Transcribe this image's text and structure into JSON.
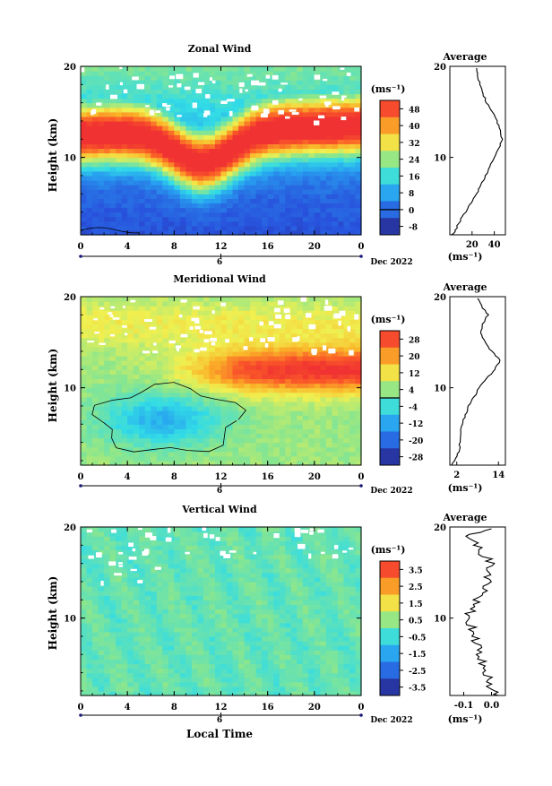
{
  "figure": {
    "time_axis_label": "Local Time",
    "date_label": "Dec 2022",
    "day_label": "6"
  },
  "chart_data": [
    {
      "type": "heatmap",
      "title": "Zonal Wind",
      "xlabel": "",
      "ylabel": "Height (km)",
      "xlim": [
        0,
        24
      ],
      "ylim": [
        1.5,
        20
      ],
      "xticks": [
        "0",
        "4",
        "8",
        "12",
        "16",
        "20",
        "0"
      ],
      "yticks": [
        "20",
        "10"
      ],
      "unit": "(ms⁻¹)",
      "colorbar_ticks": [
        "48",
        "40",
        "32",
        "24",
        "16",
        "8",
        "0",
        "-8"
      ],
      "colorbar_range": [
        -10,
        50
      ],
      "contour_level": 0,
      "field_description": "peak > 45 near 11-14 km, jet descending to ~8 km around 08-12 LT",
      "profile_title": "Average",
      "profile_xticks": [
        "20",
        "40"
      ],
      "profile_xlim": [
        0,
        50
      ],
      "profile_xlabel": "(ms⁻¹)",
      "profile": {
        "height": [
          1.5,
          2,
          3,
          4,
          5,
          6,
          7,
          8,
          9,
          10,
          11,
          12,
          13,
          14,
          15,
          16,
          17,
          18,
          19,
          19.8
        ],
        "value": [
          2,
          5,
          9,
          14,
          19,
          24,
          28,
          32,
          36,
          40,
          44,
          47,
          46,
          42,
          38,
          33,
          30,
          27,
          25,
          24
        ]
      }
    },
    {
      "type": "heatmap",
      "title": "Meridional Wind",
      "xlabel": "",
      "ylabel": "Height (km)",
      "xlim": [
        0,
        24
      ],
      "ylim": [
        1.5,
        20
      ],
      "xticks": [
        "0",
        "4",
        "8",
        "12",
        "16",
        "20",
        "0"
      ],
      "yticks": [
        "20",
        "10"
      ],
      "unit": "(ms⁻¹)",
      "colorbar_ticks": [
        "28",
        "20",
        "12",
        "4",
        "-4",
        "-12",
        "-20",
        "-28"
      ],
      "colorbar_range": [
        -30,
        30
      ],
      "contour_level": 0,
      "field_description": "southward (negative) region at 3-10 km before 13 LT; northward maximum 11-14 km after 12 LT",
      "profile_title": "Average",
      "profile_xticks": [
        "2",
        "14"
      ],
      "profile_xlim": [
        0,
        16
      ],
      "profile_xlabel": "(ms⁻¹)",
      "profile": {
        "height": [
          1.5,
          2,
          3,
          4,
          5,
          6,
          7,
          8,
          9,
          10,
          11,
          12,
          13,
          14,
          15,
          16,
          17,
          18,
          19,
          19.8
        ],
        "value": [
          0.5,
          1.5,
          2.5,
          3.0,
          3.0,
          3.5,
          4.5,
          5.5,
          7.0,
          8.5,
          10.5,
          13.0,
          14.5,
          12.0,
          10.0,
          9.0,
          9.5,
          11.0,
          9.0,
          8.0
        ]
      }
    },
    {
      "type": "heatmap",
      "title": "Vertical Wind",
      "xlabel": "Local Time",
      "ylabel": "Height (km)",
      "xlim": [
        0,
        24
      ],
      "ylim": [
        1.5,
        20
      ],
      "xticks": [
        "0",
        "4",
        "8",
        "12",
        "16",
        "20",
        "0"
      ],
      "yticks": [
        "20",
        "10"
      ],
      "unit": "(ms⁻¹)",
      "colorbar_ticks": [
        "3.5",
        "2.5",
        "1.5",
        "0.5",
        "-0.5",
        "-1.5",
        "-2.5",
        "-3.5"
      ],
      "colorbar_range": [
        -4,
        4
      ],
      "field_description": "near zero everywhere (-0.5 to 0.5)",
      "profile_title": "Average",
      "profile_xticks": [
        "-0.1",
        "0.0"
      ],
      "profile_xlim": [
        -0.15,
        0.05
      ],
      "profile_xlabel": "(ms⁻¹)",
      "profile": {
        "height": [
          1.5,
          2,
          3,
          4,
          5,
          6,
          7,
          8,
          9,
          10,
          11,
          12,
          13,
          14,
          15,
          16,
          17,
          18,
          19,
          19.8
        ],
        "value": [
          0.03,
          0.0,
          -0.01,
          -0.02,
          -0.03,
          -0.04,
          -0.05,
          -0.06,
          -0.07,
          -0.09,
          -0.07,
          -0.05,
          -0.03,
          -0.01,
          -0.02,
          0.0,
          -0.03,
          -0.05,
          -0.09,
          0.0
        ]
      }
    }
  ]
}
